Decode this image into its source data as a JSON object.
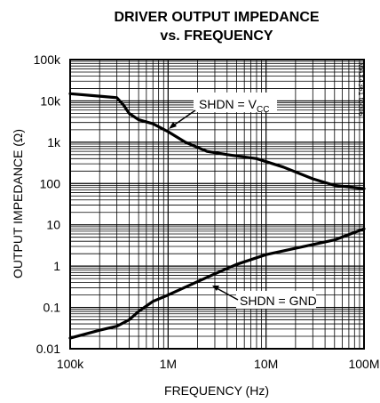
{
  "chart_data": {
    "type": "line",
    "title": [
      "DRIVER OUTPUT IMPEDANCE",
      "vs. FREQUENCY"
    ],
    "xlabel": "FREQUENCY (Hz)",
    "ylabel": "OUTPUT IMPEDANCE (Ω)",
    "x_scale": "log",
    "y_scale": "log",
    "xlim": [
      100000,
      100000000
    ],
    "ylim": [
      0.01,
      100000
    ],
    "x_ticks": [
      {
        "value": 100000,
        "label": "100k"
      },
      {
        "value": 1000000,
        "label": "1M"
      },
      {
        "value": 10000000,
        "label": "10M"
      },
      {
        "value": 100000000,
        "label": "100M"
      }
    ],
    "y_ticks": [
      {
        "value": 100000,
        "label": "100k"
      },
      {
        "value": 10000,
        "label": "10k"
      },
      {
        "value": 1000,
        "label": "1k"
      },
      {
        "value": 100,
        "label": "100"
      },
      {
        "value": 10,
        "label": "10"
      },
      {
        "value": 1,
        "label": "1"
      },
      {
        "value": 0.1,
        "label": "0.1"
      },
      {
        "value": 0.01,
        "label": "0.01"
      }
    ],
    "grid": true,
    "reference_code": "MAX4361 toc06",
    "series": [
      {
        "name": "SHDN = VCC",
        "annotation": {
          "main": "SHDN = V",
          "sub": "CC"
        },
        "x": [
          100000,
          200000,
          300000,
          350000,
          400000,
          500000,
          700000,
          1000000,
          1500000,
          2500000,
          4000000,
          8000000,
          15000000,
          30000000,
          50000000,
          100000000
        ],
        "y": [
          15000,
          13000,
          12000,
          8000,
          5000,
          3500,
          2800,
          1800,
          1000,
          600,
          500,
          400,
          250,
          130,
          90,
          75
        ]
      },
      {
        "name": "SHDN = GND",
        "annotation": {
          "main": "SHDN = GND",
          "sub": ""
        },
        "x": [
          100000,
          200000,
          300000,
          400000,
          500000,
          700000,
          1000000,
          2000000,
          3000000,
          5000000,
          10000000,
          20000000,
          50000000,
          100000000
        ],
        "y": [
          0.018,
          0.028,
          0.035,
          0.05,
          0.08,
          0.14,
          0.2,
          0.42,
          0.65,
          1.1,
          1.9,
          2.7,
          4.3,
          8.0
        ]
      }
    ]
  }
}
